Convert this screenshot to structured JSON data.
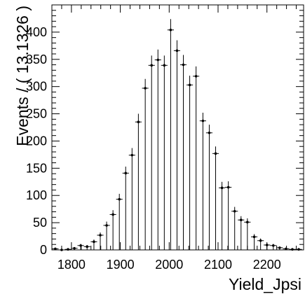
{
  "chart_data": {
    "type": "scatter",
    "title": "",
    "xlabel": "Yield_Jpsi",
    "ylabel": "Events / ( 13.1326 )",
    "xlim": [
      1760,
      2275
    ],
    "ylim": [
      0,
      450
    ],
    "x_ticks": [
      1800,
      1900,
      2000,
      2100,
      2200
    ],
    "y_ticks": [
      0,
      50,
      100,
      150,
      200,
      250,
      300,
      350,
      400
    ],
    "grid": false,
    "legend": "none",
    "series": [
      {
        "marker": "point-with-errorbars",
        "x": [
          1767,
          1780,
          1793,
          1806,
          1819,
          1832,
          1846,
          1859,
          1872,
          1885,
          1898,
          1911,
          1924,
          1937,
          1951,
          1964,
          1977,
          1990,
          2003,
          2016,
          2029,
          2042,
          2055,
          2069,
          2082,
          2095,
          2108,
          2121,
          2134,
          2147,
          2160,
          2174,
          2187,
          2200,
          2213,
          2226,
          2239,
          2252,
          2265
        ],
        "y": [
          2,
          0,
          1,
          3,
          8,
          6,
          15,
          27,
          45,
          65,
          93,
          141,
          174,
          235,
          297,
          339,
          349,
          339,
          404,
          366,
          340,
          303,
          319,
          237,
          215,
          177,
          114,
          115,
          71,
          55,
          51,
          24,
          17,
          9,
          8,
          4,
          2,
          1,
          1
        ],
        "err": [
          2,
          1,
          2,
          2,
          3,
          3,
          4,
          5,
          7,
          8,
          10,
          12,
          13,
          15,
          17,
          18,
          19,
          18,
          20,
          19,
          18,
          17,
          18,
          15,
          15,
          13,
          11,
          11,
          8,
          7,
          7,
          5,
          4,
          3,
          3,
          2,
          2,
          1,
          1
        ]
      }
    ]
  }
}
